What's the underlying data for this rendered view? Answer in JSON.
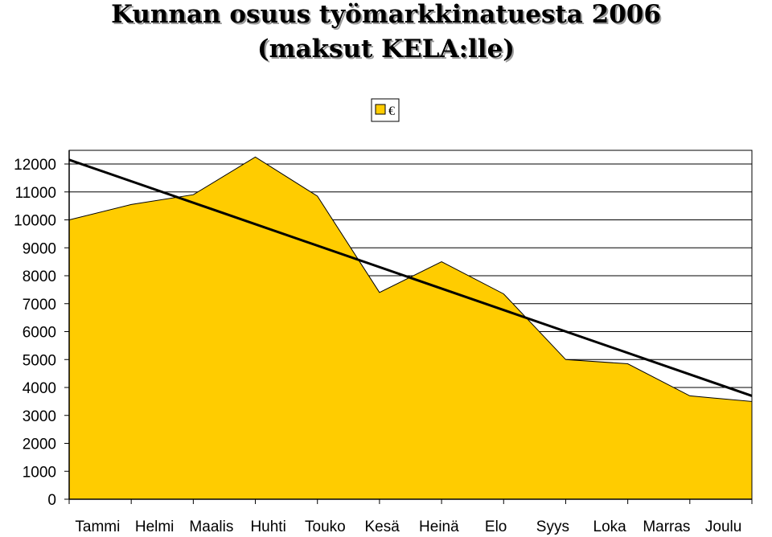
{
  "chart_data": {
    "type": "area",
    "title": "Kunnan osuus työmarkkinatuesta 2006",
    "subtitle": "(maksut KELA:lle)",
    "xlabel": "",
    "ylabel": "",
    "categories": [
      "Tammi",
      "Helmi",
      "Maalis",
      "Huhti",
      "Touko",
      "Kesä",
      "Heinä",
      "Elo",
      "Syys",
      "Loka",
      "Marras",
      "Joulu"
    ],
    "series": [
      {
        "name": "€",
        "values": [
          10000,
          10550,
          10900,
          12250,
          10850,
          7400,
          8500,
          7350,
          5000,
          4850,
          3700,
          3500
        ],
        "color": "#ffcc00"
      }
    ],
    "trendline": {
      "start": 12150,
      "end": 3700,
      "color": "#000000"
    },
    "ylim": [
      0,
      12000
    ],
    "yticks": [
      0,
      1000,
      2000,
      3000,
      4000,
      5000,
      6000,
      7000,
      8000,
      9000,
      10000,
      11000,
      12000
    ],
    "grid": true,
    "legend": "top-center"
  }
}
